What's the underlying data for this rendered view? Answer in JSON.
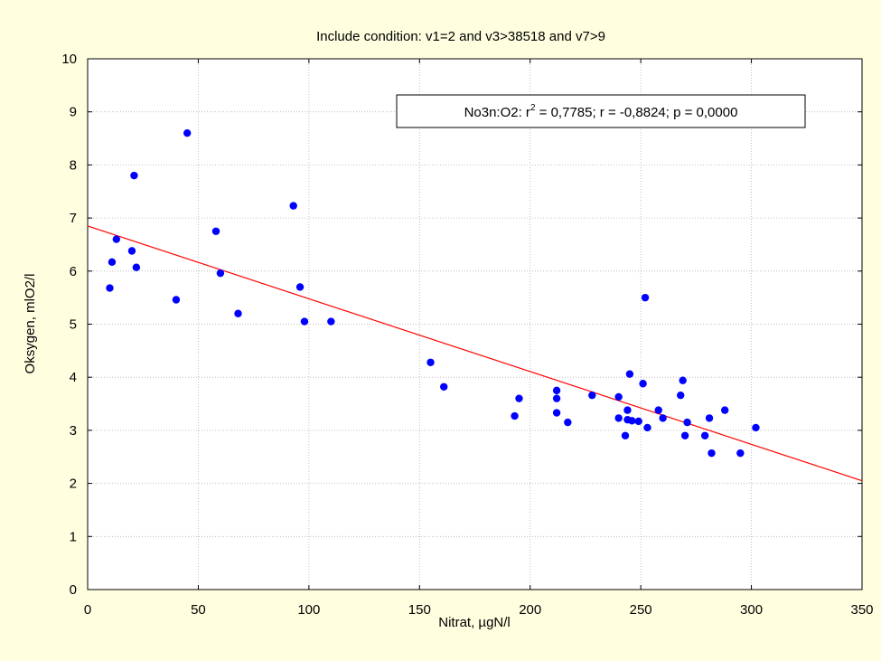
{
  "chart_data": {
    "type": "scatter",
    "title": "Include condition: v1=2 and v3>38518 and v7>9",
    "xlabel": "Nitrat, µgN/l",
    "ylabel": "Oksygen, mlO2/l",
    "xlim": [
      0,
      350
    ],
    "ylim": [
      0,
      10
    ],
    "x_ticks": [
      0,
      50,
      100,
      150,
      200,
      250,
      300,
      350
    ],
    "y_ticks": [
      0,
      1,
      2,
      3,
      4,
      5,
      6,
      7,
      8,
      9,
      10
    ],
    "grid": true,
    "annotation": {
      "prefix": "No3n:O2:  r",
      "sup": "2",
      "suffix": " = 0,7785;  r = -0,8824; p = 0,0000"
    },
    "colors": {
      "points": "#0000ff",
      "fit_line": "#ff0000",
      "background": "#ffffe0",
      "plot_area": "#ffffff"
    },
    "fit_line": {
      "x": [
        0,
        350
      ],
      "y": [
        6.85,
        2.05
      ]
    },
    "points": [
      {
        "x": 10,
        "y": 5.68
      },
      {
        "x": 11,
        "y": 6.17
      },
      {
        "x": 13,
        "y": 6.6
      },
      {
        "x": 20,
        "y": 6.38
      },
      {
        "x": 21,
        "y": 7.8
      },
      {
        "x": 22,
        "y": 6.07
      },
      {
        "x": 40,
        "y": 5.46
      },
      {
        "x": 45,
        "y": 8.6
      },
      {
        "x": 58,
        "y": 6.75
      },
      {
        "x": 60,
        "y": 5.96
      },
      {
        "x": 68,
        "y": 5.2
      },
      {
        "x": 93,
        "y": 7.23
      },
      {
        "x": 96,
        "y": 5.7
      },
      {
        "x": 98,
        "y": 5.05
      },
      {
        "x": 110,
        "y": 5.05
      },
      {
        "x": 155,
        "y": 4.28
      },
      {
        "x": 161,
        "y": 3.82
      },
      {
        "x": 193,
        "y": 3.27
      },
      {
        "x": 195,
        "y": 3.6
      },
      {
        "x": 212,
        "y": 3.75
      },
      {
        "x": 212,
        "y": 3.6
      },
      {
        "x": 212,
        "y": 3.33
      },
      {
        "x": 217,
        "y": 3.15
      },
      {
        "x": 228,
        "y": 3.66
      },
      {
        "x": 240,
        "y": 3.23
      },
      {
        "x": 240,
        "y": 3.63
      },
      {
        "x": 243,
        "y": 2.9
      },
      {
        "x": 244,
        "y": 3.38
      },
      {
        "x": 244,
        "y": 3.2
      },
      {
        "x": 245,
        "y": 4.06
      },
      {
        "x": 246,
        "y": 3.18
      },
      {
        "x": 249,
        "y": 3.17
      },
      {
        "x": 251,
        "y": 3.88
      },
      {
        "x": 252,
        "y": 5.5
      },
      {
        "x": 253,
        "y": 3.05
      },
      {
        "x": 258,
        "y": 3.38
      },
      {
        "x": 260,
        "y": 3.23
      },
      {
        "x": 268,
        "y": 3.66
      },
      {
        "x": 269,
        "y": 3.94
      },
      {
        "x": 270,
        "y": 2.9
      },
      {
        "x": 271,
        "y": 3.15
      },
      {
        "x": 279,
        "y": 2.9
      },
      {
        "x": 281,
        "y": 3.23
      },
      {
        "x": 282,
        "y": 2.57
      },
      {
        "x": 288,
        "y": 3.38
      },
      {
        "x": 295,
        "y": 2.57
      },
      {
        "x": 302,
        "y": 3.05
      }
    ]
  }
}
